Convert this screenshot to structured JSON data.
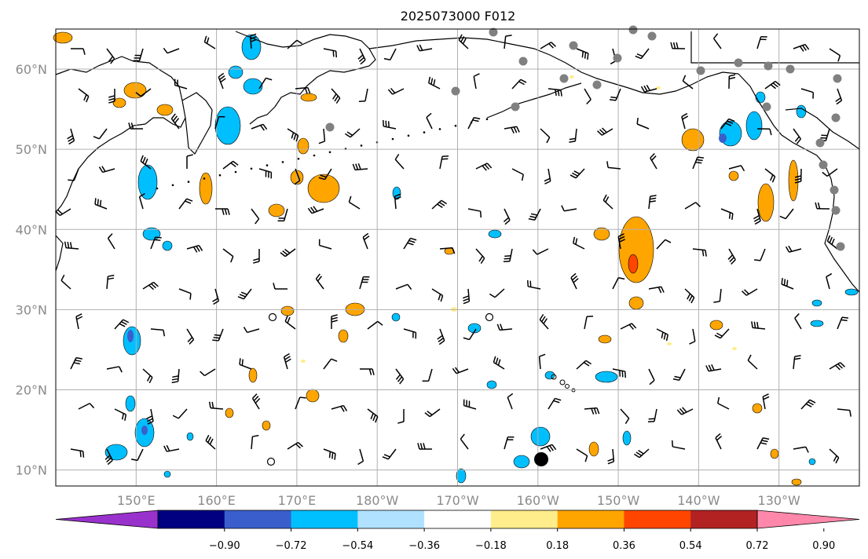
{
  "title": "2025073000 F012",
  "map": {
    "lat_labels": [
      "60°N",
      "50°N",
      "40°N",
      "30°N",
      "20°N",
      "10°N"
    ],
    "lat_values": [
      60,
      50,
      40,
      30,
      20,
      10
    ],
    "lon_labels": [
      "150°E",
      "160°E",
      "170°E",
      "180°W",
      "170°W",
      "160°W",
      "150°W",
      "140°W",
      "130°W"
    ],
    "lon_values": [
      150,
      160,
      170,
      180,
      190,
      200,
      210,
      220,
      230
    ],
    "lon_range": [
      140,
      240
    ],
    "lat_range": [
      8,
      65
    ],
    "grid": true
  },
  "colorbar": {
    "tick_labels": [
      "−0.90",
      "−0.72",
      "−0.54",
      "−0.36",
      "−0.18",
      "0.18",
      "0.36",
      "0.54",
      "0.72",
      "0.90"
    ],
    "colors": [
      "#9932cc",
      "#000080",
      "#3a5fcd",
      "#00bfff",
      "#b0e2ff",
      "#ffffff",
      "#ffec8b",
      "#ffa500",
      "#ff4500",
      "#b22222",
      "#ff88aa"
    ],
    "extend": "both"
  },
  "colors": {
    "land_outline": "#000000",
    "grid": "#b0b0b0",
    "gray_dot": "#808080"
  }
}
